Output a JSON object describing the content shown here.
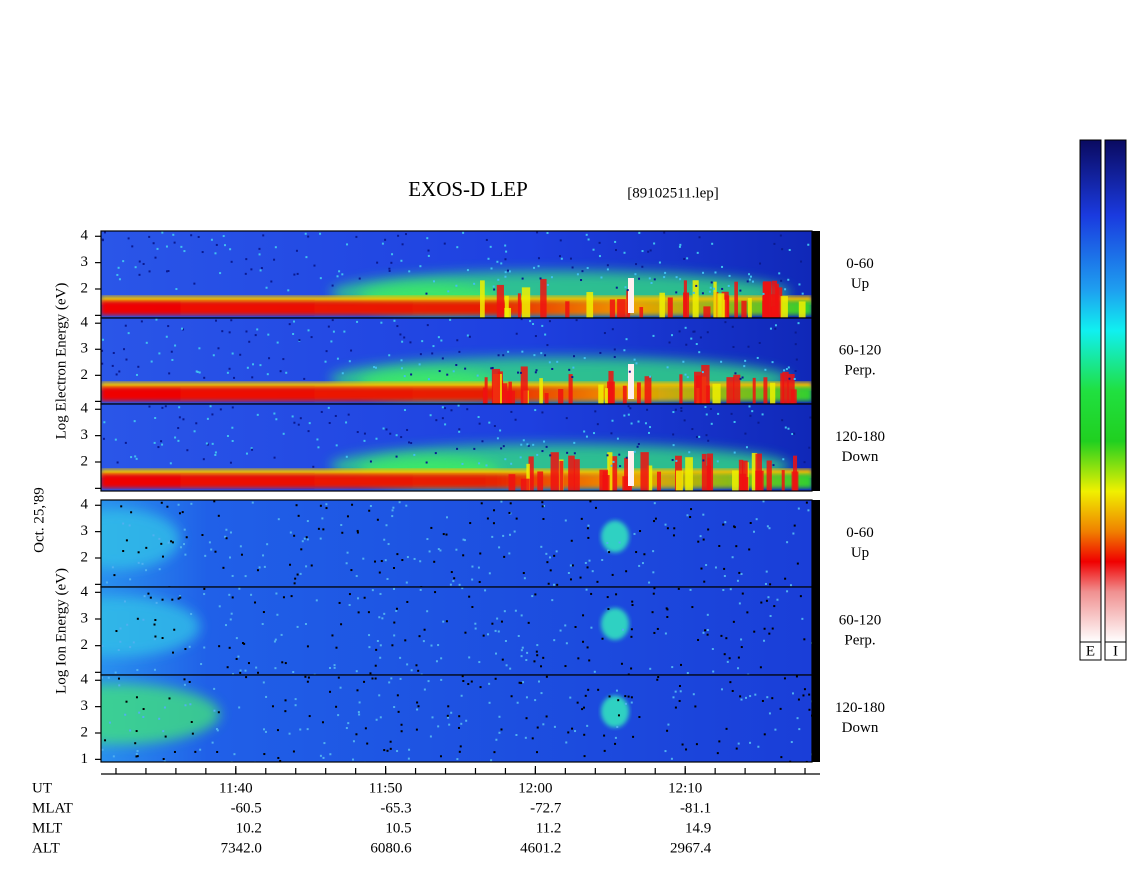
{
  "chart_data": {
    "type": "spectrogram",
    "title": "EXOS-D LEP",
    "file": "[89102511.lep]",
    "date": "Oct. 25,'89",
    "xlim": [
      691,
      739
    ],
    "xticks": [
      {
        "value": 700,
        "label": "11:40"
      },
      {
        "value": 710,
        "label": "11:50"
      },
      {
        "value": 720,
        "label": "12:00"
      },
      {
        "value": 730,
        "label": "12:10"
      }
    ],
    "xminorticks": [
      692,
      694,
      696,
      698,
      700,
      702,
      704,
      706,
      708,
      710,
      712,
      714,
      716,
      718,
      720,
      722,
      724,
      726,
      728,
      730,
      732,
      734,
      736,
      738
    ],
    "xlabel": "UT",
    "orbit": [
      {
        "name": "MLAT",
        "values": [
          "-60.5",
          "-65.3",
          "-72.7",
          "-81.1"
        ]
      },
      {
        "name": "MLT",
        "values": [
          "10.2",
          "10.5",
          "11.2",
          "14.9"
        ]
      },
      {
        "name": "ALT",
        "values": [
          "7342.0",
          "6080.6",
          "4601.2",
          "2967.4"
        ]
      }
    ],
    "groups": [
      {
        "species": "electron",
        "ylabel": "Log  Electron  Energy (eV)",
        "panels": [
          {
            "range": "0-60",
            "direction": "Up",
            "ylim": [
              0.9,
              4.2
            ],
            "yticks": [
              2,
              3,
              4
            ],
            "minor_yticks": [
              1
            ]
          },
          {
            "range": "60-120",
            "direction": "Perp.",
            "ylim": [
              0.9,
              4.2
            ],
            "yticks": [
              2,
              3,
              4
            ],
            "minor_yticks": [
              1
            ]
          },
          {
            "range": "120-180",
            "direction": "Down",
            "ylim": [
              0.9,
              4.2
            ],
            "yticks": [
              2,
              3,
              4
            ],
            "minor_yticks": [
              1
            ]
          }
        ]
      },
      {
        "species": "ion",
        "ylabel": "Log  Ion  Energy (eV)",
        "panels": [
          {
            "range": "0-60",
            "direction": "Up",
            "ylim": [
              0.9,
              4.2
            ],
            "yticks": [
              2,
              3,
              4
            ],
            "minor_yticks": [
              1
            ]
          },
          {
            "range": "60-120",
            "direction": "Perp.",
            "ylim": [
              0.9,
              4.2
            ],
            "yticks": [
              2,
              3,
              4
            ],
            "minor_yticks": [
              1
            ]
          },
          {
            "range": "120-180",
            "direction": "Down",
            "ylim": [
              0.9,
              4.2
            ],
            "yticks": [
              1,
              2,
              3,
              4
            ],
            "minor_yticks": []
          }
        ]
      }
    ],
    "colorbars": [
      "E",
      "I"
    ]
  }
}
